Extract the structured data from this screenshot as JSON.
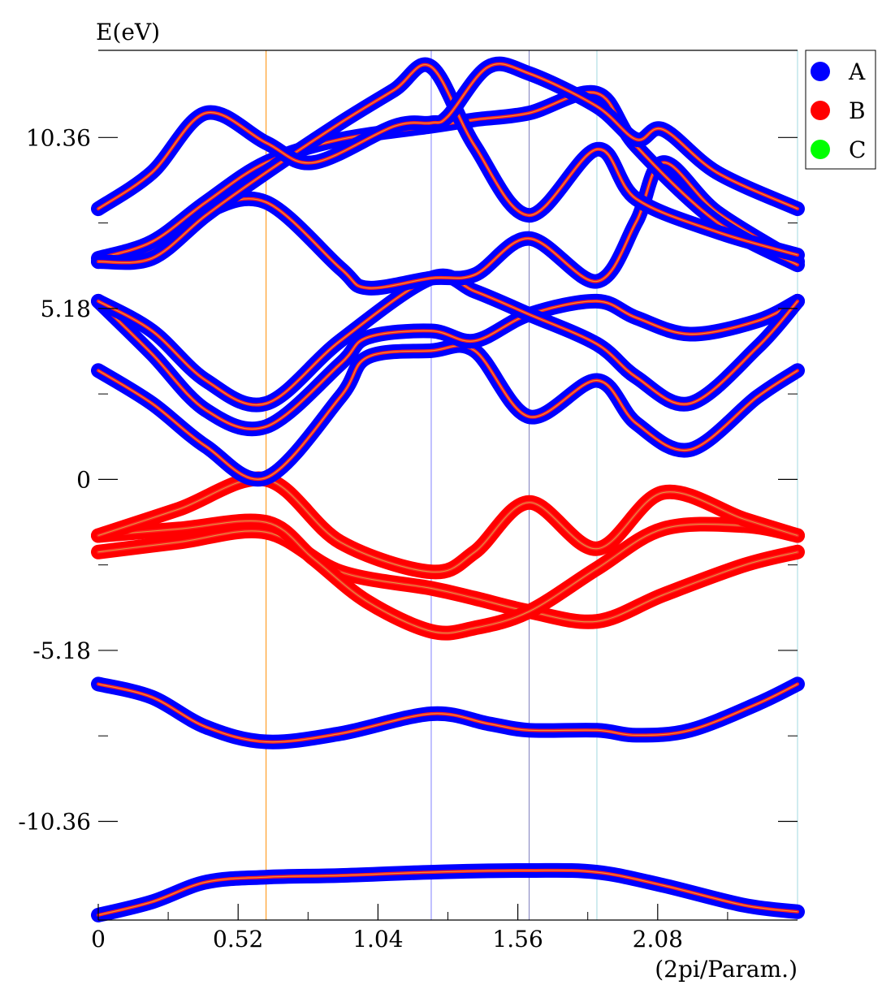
{
  "chart_data": {
    "type": "line",
    "title": "",
    "ylabel": "E(eV)",
    "xlabel": "(2pi/Param.)",
    "xlim": [
      0,
      2.6
    ],
    "ylim": [
      -13.35,
      13.0
    ],
    "x_ticks": [
      {
        "value": 0,
        "label": "0"
      },
      {
        "value": 0.52,
        "label": "0.52"
      },
      {
        "value": 1.04,
        "label": "1.04"
      },
      {
        "value": 1.56,
        "label": "1.56"
      },
      {
        "value": 2.08,
        "label": "2.08"
      }
    ],
    "y_ticks": [
      {
        "value": 10.36,
        "label": "10.36"
      },
      {
        "value": 5.18,
        "label": "5.18"
      },
      {
        "value": 0,
        "label": "0"
      },
      {
        "value": -5.18,
        "label": "-5.18"
      },
      {
        "value": -10.36,
        "label": "-10.36"
      }
    ],
    "grid": false,
    "legend_position": "top-right",
    "legend": [
      {
        "name": "A",
        "color": "#0000ff"
      },
      {
        "name": "B",
        "color": "#ff0000"
      },
      {
        "name": "C",
        "color": "#00ff00"
      }
    ],
    "high_symmetry_lines": [
      {
        "x": 0.624,
        "color": "#ff8c00"
      },
      {
        "x": 1.238,
        "color": "#8080ff"
      },
      {
        "x": 1.602,
        "color": "#8080c0"
      },
      {
        "x": 1.854,
        "color": "#a0d8e0"
      },
      {
        "x": 2.6,
        "color": "#a0d8e0"
      }
    ],
    "series": [
      {
        "color": "A",
        "points": [
          [
            0,
            -13.2
          ],
          [
            0.2,
            -12.8
          ],
          [
            0.4,
            -12.2
          ],
          [
            0.624,
            -12.05
          ],
          [
            0.9,
            -12.0
          ],
          [
            1.238,
            -11.9
          ],
          [
            1.602,
            -11.85
          ],
          [
            1.854,
            -11.9
          ],
          [
            2.1,
            -12.3
          ],
          [
            2.4,
            -12.9
          ],
          [
            2.6,
            -13.1
          ]
        ]
      },
      {
        "color": "A",
        "points": [
          [
            0,
            -6.2
          ],
          [
            0.2,
            -6.6
          ],
          [
            0.4,
            -7.5
          ],
          [
            0.624,
            -7.95
          ],
          [
            0.9,
            -7.7
          ],
          [
            1.238,
            -7.1
          ],
          [
            1.45,
            -7.4
          ],
          [
            1.602,
            -7.6
          ],
          [
            1.854,
            -7.6
          ],
          [
            2.0,
            -7.75
          ],
          [
            2.2,
            -7.6
          ],
          [
            2.45,
            -6.8
          ],
          [
            2.6,
            -6.2
          ]
        ]
      },
      {
        "color": "B",
        "points": [
          [
            0,
            -2.2
          ],
          [
            0.3,
            -1.9
          ],
          [
            0.624,
            -1.6
          ],
          [
            0.9,
            -2.8
          ],
          [
            1.238,
            -3.3
          ],
          [
            1.4,
            -3.6
          ],
          [
            1.602,
            -4.0
          ],
          [
            1.854,
            -4.3
          ],
          [
            2.1,
            -3.5
          ],
          [
            2.4,
            -2.6
          ],
          [
            2.6,
            -2.2
          ]
        ]
      },
      {
        "color": "B",
        "points": [
          [
            0,
            -1.7
          ],
          [
            0.3,
            -1.5
          ],
          [
            0.624,
            -1.3
          ],
          [
            0.8,
            -2.4
          ],
          [
            1.0,
            -3.7
          ],
          [
            1.238,
            -4.6
          ],
          [
            1.4,
            -4.5
          ],
          [
            1.602,
            -4.0
          ],
          [
            1.854,
            -2.7
          ],
          [
            2.1,
            -1.5
          ],
          [
            2.4,
            -1.4
          ],
          [
            2.6,
            -1.7
          ]
        ]
      },
      {
        "color": "B",
        "points": [
          [
            0,
            -1.7
          ],
          [
            0.3,
            -0.9
          ],
          [
            0.624,
            0.0
          ],
          [
            0.9,
            -1.9
          ],
          [
            1.238,
            -2.8
          ],
          [
            1.4,
            -2.2
          ],
          [
            1.602,
            -0.7
          ],
          [
            1.854,
            -2.1
          ],
          [
            2.1,
            -0.4
          ],
          [
            2.4,
            -1.2
          ],
          [
            2.6,
            -1.7
          ]
        ]
      },
      {
        "color": "A",
        "points": [
          [
            0,
            3.3
          ],
          [
            0.2,
            2.3
          ],
          [
            0.4,
            1.0
          ],
          [
            0.624,
            0.05
          ],
          [
            0.9,
            2.5
          ],
          [
            1.0,
            3.7
          ],
          [
            1.238,
            3.9
          ],
          [
            1.4,
            3.9
          ],
          [
            1.602,
            1.9
          ],
          [
            1.854,
            3.0
          ],
          [
            2.0,
            1.7
          ],
          [
            2.2,
            0.9
          ],
          [
            2.45,
            2.5
          ],
          [
            2.6,
            3.3
          ]
        ]
      },
      {
        "color": "A",
        "points": [
          [
            0,
            5.4
          ],
          [
            0.2,
            3.8
          ],
          [
            0.4,
            2.1
          ],
          [
            0.624,
            1.6
          ],
          [
            0.9,
            3.5
          ],
          [
            1.0,
            4.3
          ],
          [
            1.238,
            4.5
          ],
          [
            1.4,
            4.2
          ],
          [
            1.602,
            5.0
          ],
          [
            1.854,
            5.4
          ],
          [
            2.0,
            4.9
          ],
          [
            2.2,
            4.4
          ],
          [
            2.45,
            4.8
          ],
          [
            2.6,
            5.4
          ]
        ]
      },
      {
        "color": "A",
        "points": [
          [
            0,
            5.4
          ],
          [
            0.2,
            4.5
          ],
          [
            0.4,
            3.0
          ],
          [
            0.624,
            2.3
          ],
          [
            0.9,
            4.2
          ],
          [
            1.238,
            6.1
          ],
          [
            1.4,
            5.7
          ],
          [
            1.602,
            5.0
          ],
          [
            1.854,
            4.1
          ],
          [
            2.0,
            3.1
          ],
          [
            2.2,
            2.3
          ],
          [
            2.45,
            4.0
          ],
          [
            2.6,
            5.4
          ]
        ]
      },
      {
        "color": "A",
        "points": [
          [
            0,
            6.6
          ],
          [
            0.2,
            7.0
          ],
          [
            0.4,
            8.1
          ],
          [
            0.624,
            8.4
          ],
          [
            0.9,
            6.4
          ],
          [
            1.0,
            5.8
          ],
          [
            1.238,
            6.1
          ],
          [
            1.4,
            6.2
          ],
          [
            1.602,
            7.3
          ],
          [
            1.854,
            6.0
          ],
          [
            2.0,
            7.8
          ],
          [
            2.1,
            9.6
          ],
          [
            2.3,
            8.1
          ],
          [
            2.6,
            6.6
          ]
        ]
      },
      {
        "color": "A",
        "points": [
          [
            0,
            6.7
          ],
          [
            0.2,
            7.2
          ],
          [
            0.4,
            8.4
          ],
          [
            0.624,
            9.6
          ],
          [
            0.9,
            10.3
          ],
          [
            1.238,
            10.7
          ],
          [
            1.4,
            10.9
          ],
          [
            1.602,
            11.1
          ],
          [
            1.854,
            11.7
          ],
          [
            2.0,
            10.1
          ],
          [
            2.3,
            7.8
          ],
          [
            2.6,
            6.5
          ]
        ]
      },
      {
        "color": "A",
        "points": [
          [
            0,
            6.6
          ],
          [
            0.2,
            6.7
          ],
          [
            0.4,
            8.0
          ],
          [
            0.624,
            9.3
          ],
          [
            0.9,
            10.8
          ],
          [
            1.1,
            11.8
          ],
          [
            1.238,
            12.5
          ],
          [
            1.4,
            10.1
          ],
          [
            1.602,
            8.0
          ],
          [
            1.854,
            10.0
          ],
          [
            2.0,
            8.5
          ],
          [
            2.3,
            7.5
          ],
          [
            2.6,
            6.8
          ]
        ]
      },
      {
        "color": "A",
        "points": [
          [
            0,
            8.2
          ],
          [
            0.2,
            9.3
          ],
          [
            0.4,
            11.1
          ],
          [
            0.624,
            10.2
          ],
          [
            0.8,
            9.6
          ],
          [
            1.1,
            10.7
          ],
          [
            1.238,
            10.8
          ],
          [
            1.3,
            11.0
          ],
          [
            1.45,
            12.5
          ],
          [
            1.602,
            12.3
          ],
          [
            1.854,
            11.3
          ],
          [
            2.0,
            10.3
          ],
          [
            2.1,
            10.6
          ],
          [
            2.3,
            9.3
          ],
          [
            2.6,
            8.2
          ]
        ]
      }
    ]
  }
}
